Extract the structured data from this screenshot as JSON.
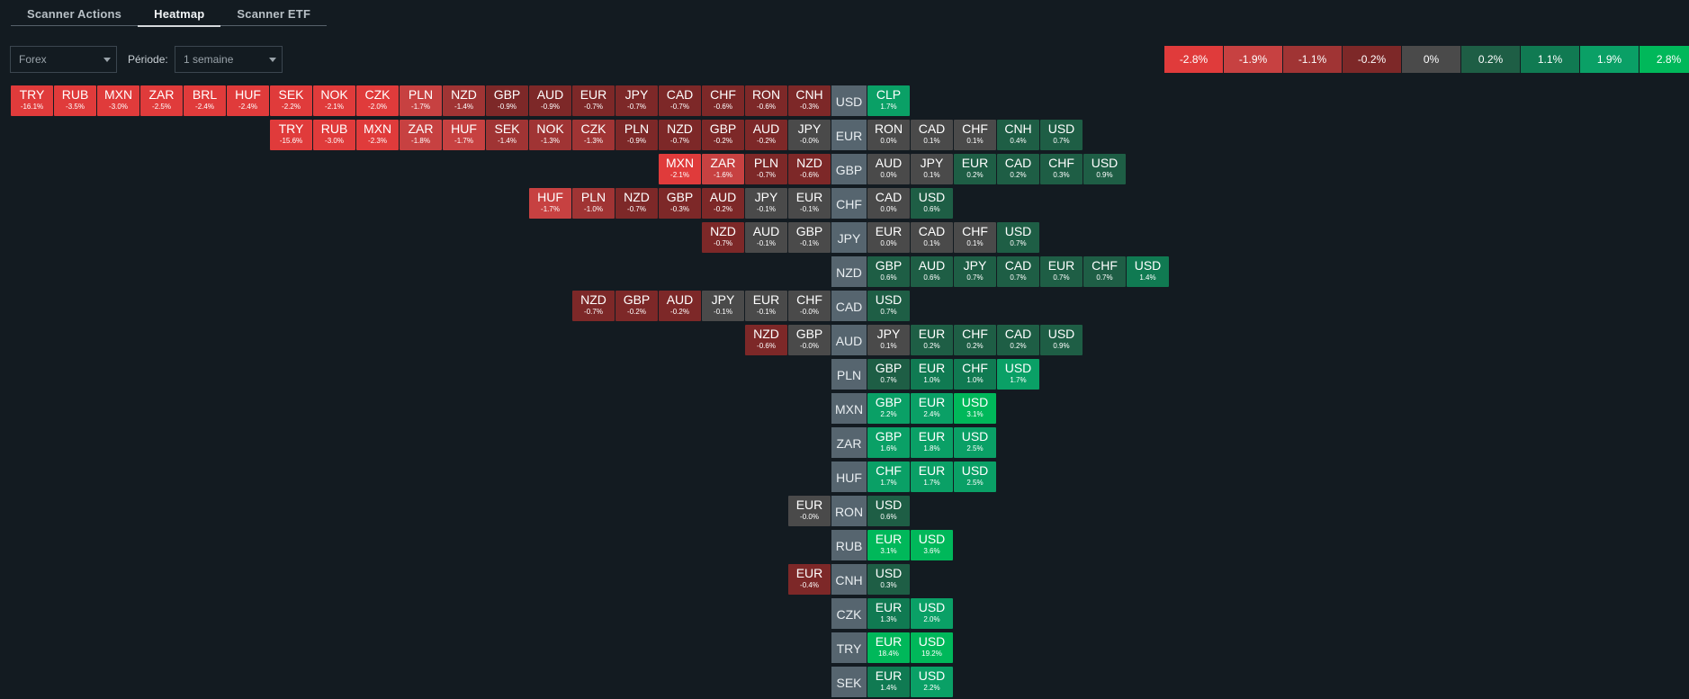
{
  "tabs": [
    {
      "label": "Scanner Actions",
      "active": false
    },
    {
      "label": "Heatmap",
      "active": true
    },
    {
      "label": "Scanner ETF",
      "active": false
    }
  ],
  "market_select": {
    "value": "Forex"
  },
  "period": {
    "label": "Période:",
    "value": "1 semaine"
  },
  "legend": [
    "-2.8%",
    "-1.9%",
    "-1.1%",
    "-0.2%",
    "0%",
    "0.2%",
    "1.1%",
    "1.9%",
    "2.8%"
  ],
  "colors": {
    "neg_strong": "#e03b3b",
    "neg_medium": "#c74141",
    "neg_light": "#a03434",
    "neg_dark": "#7d2828",
    "neutral": "#4a4a4a",
    "pos_dark": "#1e5e45",
    "pos_medium": "#107a52",
    "pos_light": "#0aa066",
    "pos_strong": "#00b85a",
    "base": "#56656f"
  },
  "rows": [
    {
      "base": "USD",
      "left": [
        [
          "TRY",
          "-16.1%"
        ],
        [
          "RUB",
          "-3.5%"
        ],
        [
          "MXN",
          "-3.0%"
        ],
        [
          "ZAR",
          "-2.5%"
        ],
        [
          "BRL",
          "-2.4%"
        ],
        [
          "HUF",
          "-2.4%"
        ],
        [
          "SEK",
          "-2.2%"
        ],
        [
          "NOK",
          "-2.1%"
        ],
        [
          "CZK",
          "-2.0%"
        ],
        [
          "PLN",
          "-1.7%"
        ],
        [
          "NZD",
          "-1.4%"
        ],
        [
          "GBP",
          "-0.9%"
        ],
        [
          "AUD",
          "-0.9%"
        ],
        [
          "EUR",
          "-0.7%"
        ],
        [
          "JPY",
          "-0.7%"
        ],
        [
          "CAD",
          "-0.7%"
        ],
        [
          "CHF",
          "-0.6%"
        ],
        [
          "RON",
          "-0.6%"
        ],
        [
          "CNH",
          "-0.3%"
        ]
      ],
      "right": [
        [
          "CLP",
          "1.7%"
        ]
      ]
    },
    {
      "base": "EUR",
      "left": [
        [
          "TRY",
          "-15.6%"
        ],
        [
          "RUB",
          "-3.0%"
        ],
        [
          "MXN",
          "-2.3%"
        ],
        [
          "ZAR",
          "-1.8%"
        ],
        [
          "HUF",
          "-1.7%"
        ],
        [
          "SEK",
          "-1.4%"
        ],
        [
          "NOK",
          "-1.3%"
        ],
        [
          "CZK",
          "-1.3%"
        ],
        [
          "PLN",
          "-0.9%"
        ],
        [
          "NZD",
          "-0.7%"
        ],
        [
          "GBP",
          "-0.2%"
        ],
        [
          "AUD",
          "-0.2%"
        ],
        [
          "JPY",
          "-0.0%"
        ]
      ],
      "right": [
        [
          "RON",
          "0.0%"
        ],
        [
          "CAD",
          "0.1%"
        ],
        [
          "CHF",
          "0.1%"
        ],
        [
          "CNH",
          "0.4%"
        ],
        [
          "USD",
          "0.7%"
        ]
      ]
    },
    {
      "base": "GBP",
      "left": [
        [
          "MXN",
          "-2.1%"
        ],
        [
          "ZAR",
          "-1.6%"
        ],
        [
          "PLN",
          "-0.7%"
        ],
        [
          "NZD",
          "-0.6%"
        ]
      ],
      "right": [
        [
          "AUD",
          "0.0%"
        ],
        [
          "JPY",
          "0.1%"
        ],
        [
          "EUR",
          "0.2%"
        ],
        [
          "CAD",
          "0.2%"
        ],
        [
          "CHF",
          "0.3%"
        ],
        [
          "USD",
          "0.9%"
        ]
      ]
    },
    {
      "base": "CHF",
      "left": [
        [
          "HUF",
          "-1.7%"
        ],
        [
          "PLN",
          "-1.0%"
        ],
        [
          "NZD",
          "-0.7%"
        ],
        [
          "GBP",
          "-0.3%"
        ],
        [
          "AUD",
          "-0.2%"
        ],
        [
          "JPY",
          "-0.1%"
        ],
        [
          "EUR",
          "-0.1%"
        ]
      ],
      "right": [
        [
          "CAD",
          "0.0%"
        ],
        [
          "USD",
          "0.6%"
        ]
      ]
    },
    {
      "base": "JPY",
      "left": [
        [
          "NZD",
          "-0.7%"
        ],
        [
          "AUD",
          "-0.1%"
        ],
        [
          "GBP",
          "-0.1%"
        ]
      ],
      "right": [
        [
          "EUR",
          "0.0%"
        ],
        [
          "CAD",
          "0.1%"
        ],
        [
          "CHF",
          "0.1%"
        ],
        [
          "USD",
          "0.7%"
        ]
      ]
    },
    {
      "base": "NZD",
      "left": [],
      "right": [
        [
          "GBP",
          "0.6%"
        ],
        [
          "AUD",
          "0.6%"
        ],
        [
          "JPY",
          "0.7%"
        ],
        [
          "CAD",
          "0.7%"
        ],
        [
          "EUR",
          "0.7%"
        ],
        [
          "CHF",
          "0.7%"
        ],
        [
          "USD",
          "1.4%"
        ]
      ]
    },
    {
      "base": "CAD",
      "left": [
        [
          "NZD",
          "-0.7%"
        ],
        [
          "GBP",
          "-0.2%"
        ],
        [
          "AUD",
          "-0.2%"
        ],
        [
          "JPY",
          "-0.1%"
        ],
        [
          "EUR",
          "-0.1%"
        ],
        [
          "CHF",
          "-0.0%"
        ]
      ],
      "right": [
        [
          "USD",
          "0.7%"
        ]
      ]
    },
    {
      "base": "AUD",
      "left": [
        [
          "NZD",
          "-0.6%"
        ],
        [
          "GBP",
          "-0.0%"
        ]
      ],
      "right": [
        [
          "JPY",
          "0.1%"
        ],
        [
          "EUR",
          "0.2%"
        ],
        [
          "CHF",
          "0.2%"
        ],
        [
          "CAD",
          "0.2%"
        ],
        [
          "USD",
          "0.9%"
        ]
      ]
    },
    {
      "base": "PLN",
      "left": [],
      "right": [
        [
          "GBP",
          "0.7%"
        ],
        [
          "EUR",
          "1.0%"
        ],
        [
          "CHF",
          "1.0%"
        ],
        [
          "USD",
          "1.7%"
        ]
      ]
    },
    {
      "base": "MXN",
      "left": [],
      "right": [
        [
          "GBP",
          "2.2%"
        ],
        [
          "EUR",
          "2.4%"
        ],
        [
          "USD",
          "3.1%"
        ]
      ]
    },
    {
      "base": "ZAR",
      "left": [],
      "right": [
        [
          "GBP",
          "1.6%"
        ],
        [
          "EUR",
          "1.8%"
        ],
        [
          "USD",
          "2.5%"
        ]
      ]
    },
    {
      "base": "HUF",
      "left": [],
      "right": [
        [
          "CHF",
          "1.7%"
        ],
        [
          "EUR",
          "1.7%"
        ],
        [
          "USD",
          "2.5%"
        ]
      ]
    },
    {
      "base": "RON",
      "left": [
        [
          "EUR",
          "-0.0%"
        ]
      ],
      "right": [
        [
          "USD",
          "0.6%"
        ]
      ]
    },
    {
      "base": "RUB",
      "left": [],
      "right": [
        [
          "EUR",
          "3.1%"
        ],
        [
          "USD",
          "3.6%"
        ]
      ]
    },
    {
      "base": "CNH",
      "left": [
        [
          "EUR",
          "-0.4%"
        ]
      ],
      "right": [
        [
          "USD",
          "0.3%"
        ]
      ]
    },
    {
      "base": "CZK",
      "left": [],
      "right": [
        [
          "EUR",
          "1.3%"
        ],
        [
          "USD",
          "2.0%"
        ]
      ]
    },
    {
      "base": "TRY",
      "left": [],
      "right": [
        [
          "EUR",
          "18.4%"
        ],
        [
          "USD",
          "19.2%"
        ]
      ]
    },
    {
      "base": "SEK",
      "left": [],
      "right": [
        [
          "EUR",
          "1.4%"
        ],
        [
          "USD",
          "2.2%"
        ]
      ]
    }
  ]
}
